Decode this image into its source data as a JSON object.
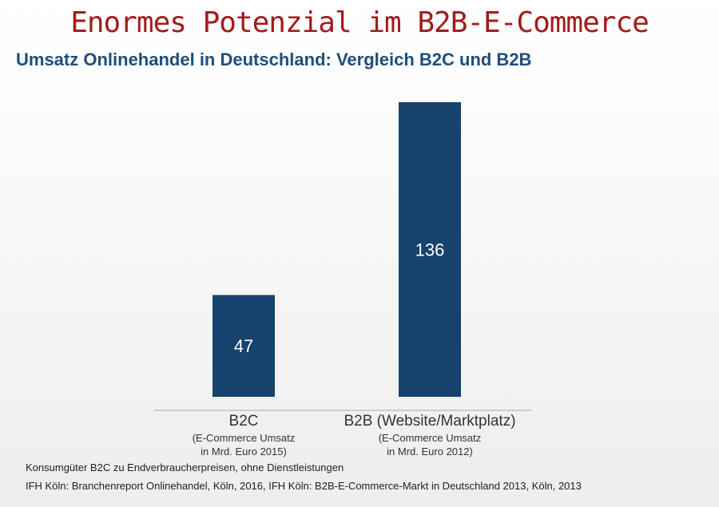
{
  "slide": {
    "headline": "Enormes Potenzial im B2B-E-Commerce"
  },
  "chart_data": {
    "type": "bar",
    "title": "Umsatz Onlinehandel in Deutschland: Vergleich B2C und B2B",
    "categories": [
      "B2C",
      "B2B (Website/Marktplatz)"
    ],
    "category_notes": [
      [
        "(E-Commerce Umsatz",
        "in Mrd. Euro 2015)"
      ],
      [
        "(E-Commerce Umsatz",
        "in Mrd. Euro 2012)"
      ]
    ],
    "values": [
      47,
      136
    ],
    "data_labels": [
      "47",
      "136"
    ],
    "ylim": [
      0,
      136
    ],
    "grid": false,
    "bar_color": "#17436e",
    "label_color": "#ffffff",
    "axis_color": "#bfbfbf"
  },
  "footnotes": [
    "Konsumgüter B2C zu Endverbraucherpreisen, ohne Dienstleistungen",
    "IFH Köln: Branchenreport Onlinehandel, Köln, 2016, IFH Köln: B2B-E-Commerce-Markt in Deutschland 2013, Köln, 2013"
  ]
}
